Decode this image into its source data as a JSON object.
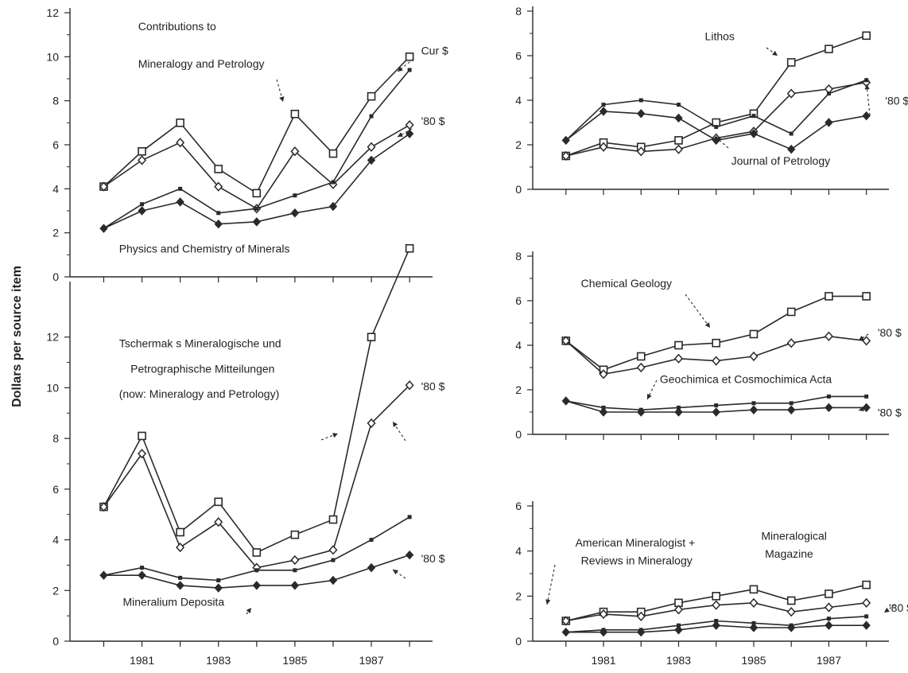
{
  "ylabel": "Dollars per source item",
  "chart_data": [
    {
      "type": "line",
      "panel": "top-left",
      "ylim": [
        0,
        12
      ],
      "yticks": [
        0,
        2,
        4,
        6,
        8,
        10,
        12
      ],
      "x": [
        1980,
        1981,
        1982,
        1983,
        1984,
        1985,
        1986,
        1987,
        1988
      ],
      "series": [
        {
          "marker": "square",
          "values": [
            4.1,
            5.7,
            7.0,
            4.9,
            3.8,
            7.4,
            5.6,
            8.2,
            10.0
          ]
        },
        {
          "marker": "diamond-open",
          "values": [
            4.1,
            5.3,
            6.1,
            4.1,
            3.1,
            5.7,
            4.2,
            5.9,
            6.9
          ]
        },
        {
          "marker": "dot",
          "values": [
            2.2,
            3.3,
            4.0,
            2.9,
            3.1,
            3.7,
            4.3,
            7.3,
            9.4
          ]
        },
        {
          "marker": "diamond-filled",
          "values": [
            2.2,
            3.0,
            3.4,
            2.4,
            2.5,
            2.9,
            3.2,
            5.3,
            6.5
          ]
        }
      ],
      "annotations": [
        {
          "text": "Contributions to",
          "ax": 1980.9,
          "ay": 11.2
        },
        {
          "text": "Mineralogy and Petrology",
          "ax": 1980.9,
          "ay": 9.5
        },
        {
          "text": "Cur $",
          "ax": 1988.3,
          "ay": 10.1
        },
        {
          "text": "'80 $",
          "ax": 1988.3,
          "ay": 6.9
        },
        {
          "text": "Physics and Chemistry of Minerals",
          "ax": 1980.4,
          "ay": 1.1
        }
      ]
    },
    {
      "type": "line",
      "panel": "bottom-left",
      "ylim": [
        0,
        14
      ],
      "yticks": [
        0,
        2,
        4,
        6,
        8,
        10,
        12
      ],
      "x": [
        1980,
        1981,
        1982,
        1983,
        1984,
        1985,
        1986,
        1987,
        1988
      ],
      "xticks": [
        1981,
        1983,
        1985,
        1987
      ],
      "series": [
        {
          "marker": "square",
          "values": [
            5.3,
            8.1,
            4.3,
            5.5,
            3.5,
            4.2,
            4.8,
            12.0,
            15.5
          ]
        },
        {
          "marker": "diamond-open",
          "values": [
            5.3,
            7.4,
            3.7,
            4.7,
            2.9,
            3.2,
            3.6,
            8.6,
            10.1
          ]
        },
        {
          "marker": "dot",
          "values": [
            2.6,
            2.9,
            2.5,
            2.4,
            2.8,
            2.8,
            3.2,
            4.0,
            4.9
          ]
        },
        {
          "marker": "diamond-filled",
          "values": [
            2.6,
            2.6,
            2.2,
            2.1,
            2.2,
            2.2,
            2.4,
            2.9,
            3.4
          ]
        }
      ],
      "annotations": [
        {
          "text": "Tschermak s Mineralogische und",
          "ax": 1980.4,
          "ay": 11.6
        },
        {
          "text": "Petrographische Mitteilungen",
          "ax": 1980.7,
          "ay": 10.6
        },
        {
          "text": "(now:  Mineralogy and Petrology)",
          "ax": 1980.4,
          "ay": 9.6
        },
        {
          "text": "'80 $",
          "ax": 1988.3,
          "ay": 9.9
        },
        {
          "text": "'80 $",
          "ax": 1988.3,
          "ay": 3.1
        },
        {
          "text": "Mineralium Deposita",
          "ax": 1980.5,
          "ay": 1.4
        }
      ]
    },
    {
      "type": "line",
      "panel": "right-1",
      "ylim": [
        0,
        8
      ],
      "yticks": [
        0,
        2,
        4,
        6,
        8
      ],
      "x": [
        1980,
        1981,
        1982,
        1983,
        1984,
        1985,
        1986,
        1987,
        1988
      ],
      "series": [
        {
          "marker": "square",
          "values": [
            1.5,
            2.1,
            1.9,
            2.2,
            3.0,
            3.4,
            5.7,
            6.3,
            6.9
          ]
        },
        {
          "marker": "diamond-open",
          "values": [
            1.5,
            1.9,
            1.7,
            1.8,
            2.3,
            2.6,
            4.3,
            4.5,
            4.8
          ]
        },
        {
          "marker": "dot",
          "values": [
            2.2,
            3.8,
            4.0,
            3.8,
            2.8,
            3.3,
            2.5,
            4.3,
            4.9
          ]
        },
        {
          "marker": "diamond-filled",
          "values": [
            2.2,
            3.5,
            3.4,
            3.2,
            2.2,
            2.5,
            1.8,
            3.0,
            3.3
          ]
        }
      ],
      "annotations": [
        {
          "text": "Lithos",
          "ax": 1983.7,
          "ay": 6.7
        },
        {
          "text": "'80 $",
          "ax": 1988.5,
          "ay": 3.8
        },
        {
          "text": "Journal of Petrology",
          "ax": 1984.4,
          "ay": 1.1
        }
      ]
    },
    {
      "type": "line",
      "panel": "right-2",
      "ylim": [
        0,
        8
      ],
      "yticks": [
        0,
        2,
        4,
        6,
        8
      ],
      "x": [
        1980,
        1981,
        1982,
        1983,
        1984,
        1985,
        1986,
        1987,
        1988
      ],
      "series": [
        {
          "marker": "square",
          "values": [
            4.2,
            2.9,
            3.5,
            4.0,
            4.1,
            4.5,
            5.5,
            6.2,
            6.2
          ]
        },
        {
          "marker": "diamond-open",
          "values": [
            4.2,
            2.7,
            3.0,
            3.4,
            3.3,
            3.5,
            4.1,
            4.4,
            4.2
          ]
        },
        {
          "marker": "dot",
          "values": [
            1.5,
            1.2,
            1.1,
            1.2,
            1.3,
            1.4,
            1.4,
            1.7,
            1.7
          ]
        },
        {
          "marker": "diamond-filled",
          "values": [
            1.5,
            1.0,
            1.0,
            1.0,
            1.0,
            1.1,
            1.1,
            1.2,
            1.2
          ]
        }
      ],
      "annotations": [
        {
          "text": "Chemical Geology",
          "ax": 1980.4,
          "ay": 6.6
        },
        {
          "text": "'80 $",
          "ax": 1988.3,
          "ay": 4.4
        },
        {
          "text": "Geochimica et Cosmochimica Acta",
          "ax": 1982.5,
          "ay": 2.3
        },
        {
          "text": "'80 $",
          "ax": 1988.3,
          "ay": 0.8
        }
      ]
    },
    {
      "type": "line",
      "panel": "right-3",
      "ylim": [
        0,
        6
      ],
      "yticks": [
        0,
        2,
        4,
        6
      ],
      "x": [
        1980,
        1981,
        1982,
        1983,
        1984,
        1985,
        1986,
        1987,
        1988
      ],
      "xticks": [
        1981,
        1983,
        1985,
        1987
      ],
      "series": [
        {
          "marker": "square",
          "values": [
            0.9,
            1.3,
            1.3,
            1.7,
            2.0,
            2.3,
            1.8,
            2.1,
            2.5
          ]
        },
        {
          "marker": "diamond-open",
          "values": [
            0.9,
            1.2,
            1.1,
            1.4,
            1.6,
            1.7,
            1.3,
            1.5,
            1.7
          ]
        },
        {
          "marker": "dot",
          "values": [
            0.4,
            0.5,
            0.5,
            0.7,
            0.9,
            0.8,
            0.7,
            1.0,
            1.1
          ]
        },
        {
          "marker": "diamond-filled",
          "values": [
            0.4,
            0.4,
            0.4,
            0.5,
            0.7,
            0.6,
            0.6,
            0.7,
            0.7
          ]
        }
      ],
      "annotations": [
        {
          "text": "American Mineralogist +",
          "ax": 1980.25,
          "ay": 4.2
        },
        {
          "text": "Reviews in Mineralogy",
          "ax": 1980.4,
          "ay": 3.4
        },
        {
          "text": "Mineralogical",
          "ax": 1985.2,
          "ay": 4.5
        },
        {
          "text": "Magazine",
          "ax": 1985.3,
          "ay": 3.7
        },
        {
          "text": "'80 $",
          "ax": 1988.6,
          "ay": 1.3
        }
      ]
    }
  ]
}
